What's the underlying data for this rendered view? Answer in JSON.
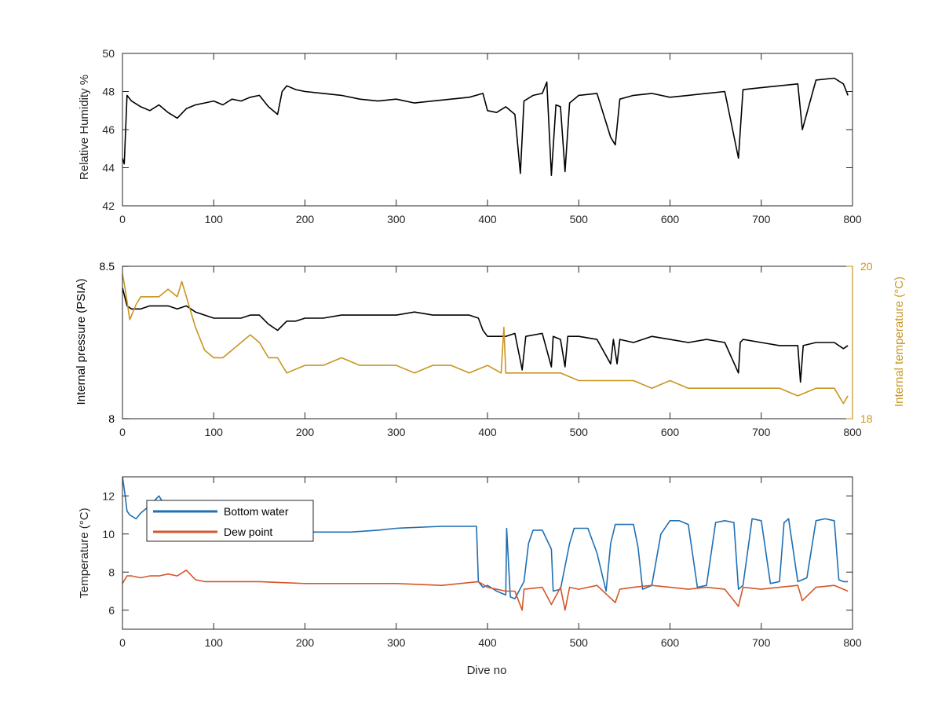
{
  "figure": {
    "xlabel": "Dive no"
  },
  "chart_data": [
    {
      "type": "line",
      "xlabel": "",
      "ylabel": "Relative Humidity %",
      "xlim": [
        0,
        800
      ],
      "ylim": [
        42,
        50
      ],
      "xticks": [
        0,
        100,
        200,
        300,
        400,
        500,
        600,
        700,
        800
      ],
      "yticks": [
        42,
        44,
        46,
        48,
        50
      ],
      "grid": false,
      "legend": "none",
      "series": [
        {
          "color": "#000000",
          "x": [
            0,
            2,
            5,
            10,
            20,
            30,
            40,
            50,
            60,
            70,
            80,
            90,
            100,
            110,
            120,
            130,
            140,
            150,
            160,
            170,
            175,
            180,
            190,
            200,
            220,
            240,
            260,
            280,
            300,
            320,
            340,
            360,
            380,
            395,
            400,
            410,
            420,
            430,
            436,
            440,
            450,
            460,
            465,
            470,
            475,
            480,
            485,
            490,
            500,
            520,
            535,
            540,
            545,
            560,
            580,
            600,
            620,
            640,
            660,
            675,
            680,
            700,
            720,
            740,
            745,
            760,
            780,
            790,
            795
          ],
          "y": [
            44.5,
            44.2,
            47.8,
            47.5,
            47.2,
            47.0,
            47.3,
            46.9,
            46.6,
            47.1,
            47.3,
            47.4,
            47.5,
            47.3,
            47.6,
            47.5,
            47.7,
            47.8,
            47.2,
            46.8,
            48.0,
            48.3,
            48.1,
            48.0,
            47.9,
            47.8,
            47.6,
            47.5,
            47.6,
            47.4,
            47.5,
            47.6,
            47.7,
            47.9,
            47.0,
            46.9,
            47.2,
            46.8,
            43.7,
            47.5,
            47.8,
            47.9,
            48.5,
            43.6,
            47.3,
            47.2,
            43.8,
            47.4,
            47.8,
            47.9,
            45.6,
            45.2,
            47.6,
            47.8,
            47.9,
            47.7,
            47.8,
            47.9,
            48.0,
            44.5,
            48.1,
            48.2,
            48.3,
            48.4,
            46.0,
            48.6,
            48.7,
            48.4,
            47.8
          ]
        }
      ]
    },
    {
      "type": "line",
      "xlabel": "",
      "ylabel": "Internal pressure (PSIA)",
      "y2label": "Internal temperature (°C)",
      "xlim": [
        0,
        800
      ],
      "ylim": [
        8,
        8.5
      ],
      "y2lim": [
        18,
        20
      ],
      "xticks": [
        0,
        100,
        200,
        300,
        400,
        500,
        600,
        700,
        800
      ],
      "yticks": [
        8,
        8.5
      ],
      "y2ticks": [
        18,
        20
      ],
      "y2color": "#c9951f",
      "grid": false,
      "legend": "none",
      "series": [
        {
          "axis": "left",
          "color": "#000000",
          "x": [
            0,
            5,
            10,
            20,
            30,
            40,
            50,
            60,
            70,
            80,
            90,
            100,
            110,
            120,
            130,
            140,
            150,
            160,
            170,
            180,
            190,
            200,
            220,
            240,
            260,
            280,
            300,
            320,
            340,
            360,
            380,
            390,
            395,
            400,
            420,
            430,
            438,
            442,
            460,
            470,
            472,
            480,
            485,
            488,
            500,
            520,
            535,
            538,
            542,
            545,
            560,
            580,
            600,
            620,
            640,
            660,
            675,
            677,
            680,
            700,
            720,
            740,
            743,
            746,
            760,
            780,
            790,
            795
          ],
          "y": [
            8.43,
            8.37,
            8.36,
            8.36,
            8.37,
            8.37,
            8.37,
            8.36,
            8.37,
            8.35,
            8.34,
            8.33,
            8.33,
            8.33,
            8.33,
            8.34,
            8.34,
            8.31,
            8.29,
            8.32,
            8.32,
            8.33,
            8.33,
            8.34,
            8.34,
            8.34,
            8.34,
            8.35,
            8.34,
            8.34,
            8.34,
            8.33,
            8.29,
            8.27,
            8.27,
            8.28,
            8.16,
            8.27,
            8.28,
            8.17,
            8.27,
            8.26,
            8.17,
            8.27,
            8.27,
            8.26,
            8.18,
            8.26,
            8.18,
            8.26,
            8.25,
            8.27,
            8.26,
            8.25,
            8.26,
            8.25,
            8.15,
            8.25,
            8.26,
            8.25,
            8.24,
            8.24,
            8.12,
            8.24,
            8.25,
            8.25,
            8.23,
            8.24
          ]
        },
        {
          "axis": "right",
          "color": "#c9951f",
          "x": [
            0,
            3,
            8,
            15,
            20,
            30,
            40,
            50,
            60,
            65,
            70,
            80,
            90,
            100,
            110,
            120,
            130,
            140,
            150,
            160,
            170,
            175,
            180,
            200,
            220,
            240,
            260,
            280,
            300,
            320,
            340,
            360,
            380,
            400,
            415,
            418,
            420,
            440,
            460,
            480,
            500,
            520,
            540,
            560,
            580,
            600,
            620,
            640,
            660,
            680,
            700,
            720,
            740,
            760,
            780,
            790,
            795
          ],
          "y": [
            19.9,
            19.7,
            19.3,
            19.5,
            19.6,
            19.6,
            19.6,
            19.7,
            19.6,
            19.8,
            19.6,
            19.2,
            18.9,
            18.8,
            18.8,
            18.9,
            19.0,
            19.1,
            19.0,
            18.8,
            18.8,
            18.7,
            18.6,
            18.7,
            18.7,
            18.8,
            18.7,
            18.7,
            18.7,
            18.6,
            18.7,
            18.7,
            18.6,
            18.7,
            18.6,
            19.2,
            18.6,
            18.6,
            18.6,
            18.6,
            18.5,
            18.5,
            18.5,
            18.5,
            18.4,
            18.5,
            18.4,
            18.4,
            18.4,
            18.4,
            18.4,
            18.4,
            18.3,
            18.4,
            18.4,
            18.2,
            18.3
          ]
        }
      ]
    },
    {
      "type": "line",
      "xlabel": "Dive no",
      "ylabel": "Temperature (°C)",
      "xlim": [
        0,
        800
      ],
      "ylim": [
        5,
        13
      ],
      "xticks": [
        0,
        100,
        200,
        300,
        400,
        500,
        600,
        700,
        800
      ],
      "yticks": [
        6,
        8,
        10,
        12
      ],
      "grid": false,
      "legend": "top-left",
      "series": [
        {
          "name": "Bottom water",
          "color": "#1f6fb3",
          "x": [
            0,
            3,
            5,
            8,
            15,
            20,
            30,
            40,
            50,
            60,
            70,
            80,
            90,
            100,
            150,
            200,
            250,
            280,
            300,
            350,
            388,
            390,
            395,
            400,
            410,
            420,
            421,
            425,
            430,
            440,
            445,
            450,
            460,
            470,
            472,
            480,
            490,
            495,
            500,
            510,
            520,
            530,
            535,
            540,
            550,
            560,
            565,
            570,
            580,
            590,
            600,
            610,
            620,
            630,
            640,
            650,
            660,
            670,
            675,
            680,
            690,
            700,
            710,
            720,
            725,
            730,
            740,
            750,
            760,
            770,
            780,
            785,
            790,
            795
          ],
          "y": [
            13,
            12,
            11.2,
            11,
            10.8,
            11.1,
            11.5,
            12.0,
            11.2,
            11.3,
            11.0,
            10.6,
            10.3,
            10.1,
            10.1,
            10.1,
            10.1,
            10.2,
            10.3,
            10.4,
            10.4,
            7.5,
            7.2,
            7.3,
            7.0,
            6.8,
            10.3,
            6.7,
            6.6,
            7.5,
            9.5,
            10.2,
            10.2,
            9.2,
            7.0,
            7.1,
            9.5,
            10.3,
            10.3,
            10.3,
            9.0,
            7.0,
            9.5,
            10.5,
            10.5,
            10.5,
            9.3,
            7.1,
            7.3,
            10.0,
            10.7,
            10.7,
            10.5,
            7.2,
            7.3,
            10.6,
            10.7,
            10.6,
            7.1,
            7.3,
            10.8,
            10.7,
            7.4,
            7.5,
            10.6,
            10.8,
            7.5,
            7.7,
            10.7,
            10.8,
            10.7,
            7.6,
            7.5,
            7.5
          ],
          "label": "Bottom water"
        },
        {
          "name": "Dew point",
          "color": "#d4562b",
          "x": [
            0,
            5,
            10,
            20,
            30,
            40,
            50,
            60,
            70,
            80,
            90,
            100,
            150,
            200,
            250,
            300,
            350,
            390,
            400,
            420,
            430,
            438,
            440,
            460,
            470,
            480,
            485,
            490,
            500,
            520,
            540,
            545,
            560,
            580,
            600,
            620,
            640,
            660,
            675,
            680,
            700,
            720,
            740,
            745,
            760,
            780,
            795
          ],
          "y": [
            7.4,
            7.8,
            7.8,
            7.7,
            7.8,
            7.8,
            7.9,
            7.8,
            8.1,
            7.6,
            7.5,
            7.5,
            7.5,
            7.4,
            7.4,
            7.4,
            7.3,
            7.5,
            7.2,
            7.0,
            7.0,
            6.0,
            7.1,
            7.2,
            6.3,
            7.2,
            6.0,
            7.2,
            7.1,
            7.3,
            6.4,
            7.1,
            7.2,
            7.3,
            7.2,
            7.1,
            7.2,
            7.1,
            6.2,
            7.2,
            7.1,
            7.2,
            7.3,
            6.5,
            7.2,
            7.3,
            7.0
          ]
        }
      ]
    }
  ]
}
